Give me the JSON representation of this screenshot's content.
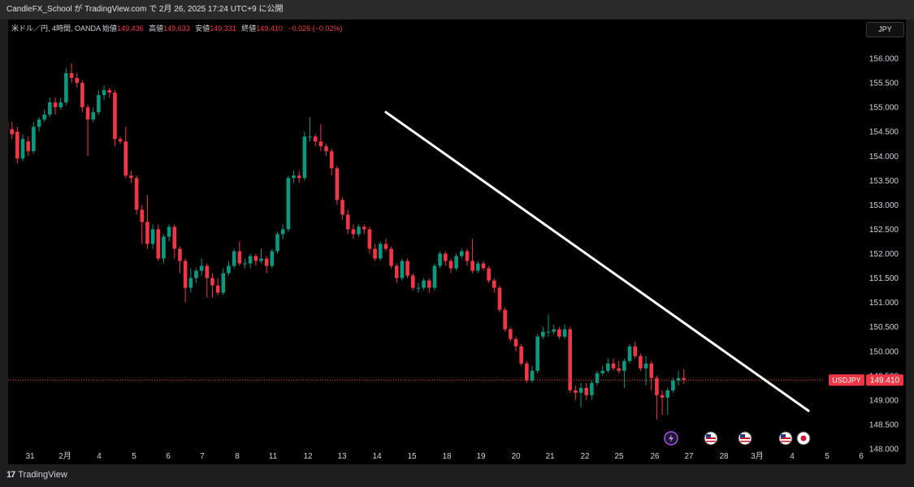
{
  "banner": {
    "text": "CandleFX_School が TradingView.com で 2月 26, 2025 17:24 UTC+9 に公開"
  },
  "header": {
    "symbol_desc": "米ドル／円, 4時間, OANDA",
    "open_label": "始値",
    "open": "149.436",
    "high_label": "高値",
    "high": "149.633",
    "low_label": "安値",
    "low": "149.331",
    "close_label": "終値",
    "close": "149.410",
    "change": "−0.026 (−0.02%)"
  },
  "currency_button": "JPY",
  "footer": {
    "brand": "TradingView",
    "logo_mark": "17"
  },
  "colors": {
    "up": "#089981",
    "down": "#f23645",
    "background": "#000000",
    "trendline": "#ffffff"
  },
  "event_icons": [
    "flash-event-icon",
    "us-flag-icon",
    "us-flag-icon",
    "us-flag-icon",
    "jp-flag-icon"
  ],
  "chart_data": {
    "type": "candlestick",
    "symbol": "USDJPY",
    "timeframe": "4時間",
    "y_ticks": [
      "156.000",
      "155.500",
      "155.000",
      "154.500",
      "154.000",
      "153.500",
      "153.000",
      "152.500",
      "152.000",
      "151.500",
      "151.000",
      "150.500",
      "150.000",
      "149.500",
      "149.000",
      "148.500",
      "148.000"
    ],
    "ylim": [
      147.9,
      156.55
    ],
    "x_tick_labels": [
      "31",
      "2月",
      "4",
      "5",
      "6",
      "7",
      "8",
      "11",
      "12",
      "13",
      "14",
      "15",
      "18",
      "19",
      "20",
      "21",
      "22",
      "25",
      "26",
      "27",
      "28",
      "3月",
      "4",
      "5",
      "6"
    ],
    "last_price": "149.410",
    "last_price_label": "USDJPY",
    "trendline": {
      "start": {
        "bar": 70,
        "price": 154.9
      },
      "end": {
        "bar": 148,
        "price": 148.78
      }
    },
    "candles": [
      [
        154.7,
        154.55,
        154.8,
        154.45
      ],
      [
        154.55,
        154.45,
        154.7,
        154.35
      ],
      [
        154.5,
        153.95,
        154.6,
        153.85
      ],
      [
        153.95,
        154.35,
        154.45,
        153.9
      ],
      [
        154.3,
        154.1,
        154.4,
        154.0
      ],
      [
        154.1,
        154.6,
        154.7,
        154.05
      ],
      [
        154.6,
        154.75,
        154.8,
        154.5
      ],
      [
        154.75,
        154.85,
        154.95,
        154.7
      ],
      [
        154.85,
        155.1,
        155.2,
        154.8
      ],
      [
        155.1,
        155.0,
        155.2,
        154.85
      ],
      [
        155.0,
        155.1,
        155.2,
        154.95
      ],
      [
        155.1,
        155.7,
        155.8,
        155.05
      ],
      [
        155.7,
        155.6,
        155.9,
        155.5
      ],
      [
        155.6,
        155.5,
        155.7,
        155.4
      ],
      [
        155.5,
        155.0,
        155.55,
        154.9
      ],
      [
        155.0,
        154.75,
        155.05,
        154.0
      ],
      [
        154.75,
        154.9,
        155.0,
        154.7
      ],
      [
        154.9,
        155.25,
        155.35,
        154.85
      ],
      [
        155.25,
        155.35,
        155.45,
        155.15
      ],
      [
        155.35,
        155.3,
        155.4,
        155.2
      ],
      [
        155.3,
        154.35,
        155.35,
        154.2
      ],
      [
        154.35,
        154.3,
        154.4,
        154.25
      ],
      [
        154.3,
        153.6,
        154.6,
        153.55
      ],
      [
        153.6,
        153.55,
        153.7,
        153.45
      ],
      [
        153.55,
        152.9,
        153.6,
        152.8
      ],
      [
        152.9,
        152.65,
        153.0,
        152.2
      ],
      [
        152.65,
        152.2,
        153.2,
        152.1
      ],
      [
        152.2,
        152.5,
        152.6,
        152.1
      ],
      [
        152.5,
        151.9,
        152.6,
        151.85
      ],
      [
        151.9,
        152.35,
        152.4,
        151.8
      ],
      [
        152.35,
        152.55,
        152.6,
        152.25
      ],
      [
        152.55,
        152.1,
        152.6,
        151.9
      ],
      [
        152.1,
        151.85,
        152.15,
        151.6
      ],
      [
        151.85,
        151.3,
        151.9,
        151.0
      ],
      [
        151.3,
        151.5,
        151.7,
        151.2
      ],
      [
        151.5,
        151.65,
        151.7,
        151.4
      ],
      [
        151.65,
        151.75,
        151.9,
        151.55
      ],
      [
        151.75,
        151.5,
        151.8,
        151.1
      ],
      [
        151.5,
        151.35,
        151.6,
        151.1
      ],
      [
        151.35,
        151.2,
        151.5,
        151.15
      ],
      [
        151.2,
        151.6,
        151.7,
        151.15
      ],
      [
        151.6,
        151.75,
        151.85,
        151.55
      ],
      [
        151.75,
        152.05,
        152.1,
        151.7
      ],
      [
        152.05,
        151.8,
        152.25,
        151.75
      ],
      [
        151.8,
        151.8,
        151.9,
        151.7
      ],
      [
        151.8,
        151.95,
        152.0,
        151.7
      ],
      [
        151.95,
        151.85,
        152.0,
        151.75
      ],
      [
        151.85,
        151.9,
        152.1,
        151.8
      ],
      [
        151.9,
        151.75,
        151.95,
        151.6
      ],
      [
        151.75,
        152.05,
        152.1,
        151.7
      ],
      [
        152.05,
        152.4,
        152.45,
        152.0
      ],
      [
        152.4,
        152.5,
        152.6,
        152.3
      ],
      [
        152.5,
        153.55,
        153.6,
        152.45
      ],
      [
        153.55,
        153.6,
        153.7,
        153.45
      ],
      [
        153.6,
        153.55,
        153.7,
        153.45
      ],
      [
        153.55,
        154.4,
        154.5,
        153.5
      ],
      [
        154.4,
        154.4,
        154.8,
        154.3
      ],
      [
        154.4,
        154.3,
        154.45,
        154.2
      ],
      [
        154.3,
        154.2,
        154.65,
        154.1
      ],
      [
        154.2,
        154.1,
        154.25,
        154.0
      ],
      [
        154.1,
        153.75,
        154.15,
        153.6
      ],
      [
        153.75,
        153.1,
        153.8,
        153.0
      ],
      [
        153.1,
        152.8,
        153.15,
        152.7
      ],
      [
        152.8,
        152.5,
        152.9,
        152.4
      ],
      [
        152.5,
        152.4,
        152.6,
        152.3
      ],
      [
        152.4,
        152.55,
        152.6,
        152.35
      ],
      [
        152.55,
        152.5,
        152.6,
        152.4
      ],
      [
        152.5,
        152.1,
        152.55,
        152.0
      ],
      [
        152.1,
        151.9,
        152.2,
        151.85
      ],
      [
        151.9,
        152.2,
        152.25,
        151.85
      ],
      [
        152.2,
        152.1,
        152.3,
        152.05
      ],
      [
        152.1,
        151.75,
        152.15,
        151.7
      ],
      [
        151.75,
        151.5,
        151.8,
        151.4
      ],
      [
        151.5,
        151.85,
        151.9,
        151.45
      ],
      [
        151.85,
        151.55,
        151.9,
        151.5
      ],
      [
        151.55,
        151.3,
        151.6,
        151.25
      ],
      [
        151.3,
        151.3,
        151.4,
        151.2
      ],
      [
        151.3,
        151.45,
        151.5,
        151.25
      ],
      [
        151.45,
        151.3,
        151.5,
        151.2
      ],
      [
        151.3,
        151.75,
        151.8,
        151.25
      ],
      [
        151.75,
        152.0,
        152.05,
        151.7
      ],
      [
        152.0,
        151.85,
        152.05,
        151.75
      ],
      [
        151.85,
        151.7,
        151.9,
        151.6
      ],
      [
        151.7,
        151.95,
        152.0,
        151.65
      ],
      [
        151.95,
        152.05,
        152.1,
        151.9
      ],
      [
        152.05,
        151.85,
        152.1,
        151.75
      ],
      [
        151.85,
        151.65,
        152.3,
        151.6
      ],
      [
        151.65,
        151.8,
        151.85,
        151.6
      ],
      [
        151.8,
        151.7,
        151.85,
        151.65
      ],
      [
        151.7,
        151.45,
        151.75,
        151.4
      ],
      [
        151.45,
        151.3,
        151.5,
        151.2
      ],
      [
        151.3,
        150.85,
        151.35,
        150.8
      ],
      [
        150.85,
        150.45,
        150.9,
        150.4
      ],
      [
        150.45,
        150.25,
        150.5,
        150.2
      ],
      [
        150.25,
        150.1,
        150.3,
        150.0
      ],
      [
        150.1,
        149.75,
        150.15,
        149.7
      ],
      [
        149.75,
        149.4,
        149.8,
        149.35
      ],
      [
        149.4,
        149.6,
        149.7,
        149.35
      ],
      [
        149.6,
        150.3,
        150.35,
        149.55
      ],
      [
        150.3,
        150.4,
        150.5,
        150.25
      ],
      [
        150.4,
        150.4,
        150.75,
        150.3
      ],
      [
        150.4,
        150.45,
        150.55,
        150.35
      ],
      [
        150.45,
        150.3,
        150.5,
        150.25
      ],
      [
        150.3,
        150.45,
        150.55,
        150.25
      ],
      [
        150.45,
        149.2,
        150.5,
        149.15
      ],
      [
        149.2,
        149.15,
        149.3,
        149.0
      ],
      [
        149.15,
        149.25,
        149.35,
        148.85
      ],
      [
        149.25,
        149.1,
        149.35,
        149.0
      ],
      [
        149.1,
        149.35,
        149.4,
        149.0
      ],
      [
        149.35,
        149.55,
        149.6,
        149.3
      ],
      [
        149.55,
        149.6,
        149.7,
        149.5
      ],
      [
        149.6,
        149.75,
        149.85,
        149.55
      ],
      [
        149.75,
        149.65,
        149.85,
        149.6
      ],
      [
        149.65,
        149.6,
        149.8,
        149.55
      ],
      [
        149.6,
        149.8,
        149.85,
        149.25
      ],
      [
        149.8,
        150.1,
        150.15,
        149.75
      ],
      [
        150.1,
        149.9,
        150.2,
        149.85
      ],
      [
        149.9,
        149.65,
        149.95,
        149.6
      ],
      [
        149.65,
        149.75,
        149.9,
        149.3
      ],
      [
        149.75,
        149.45,
        149.8,
        149.2
      ],
      [
        149.45,
        149.1,
        149.5,
        148.6
      ],
      [
        149.1,
        149.05,
        149.2,
        148.7
      ],
      [
        149.05,
        149.2,
        149.25,
        148.7
      ],
      [
        149.2,
        149.4,
        149.45,
        149.15
      ],
      [
        149.4,
        149.45,
        149.6,
        149.3
      ],
      [
        149.45,
        149.41,
        149.63,
        149.33
      ]
    ]
  }
}
